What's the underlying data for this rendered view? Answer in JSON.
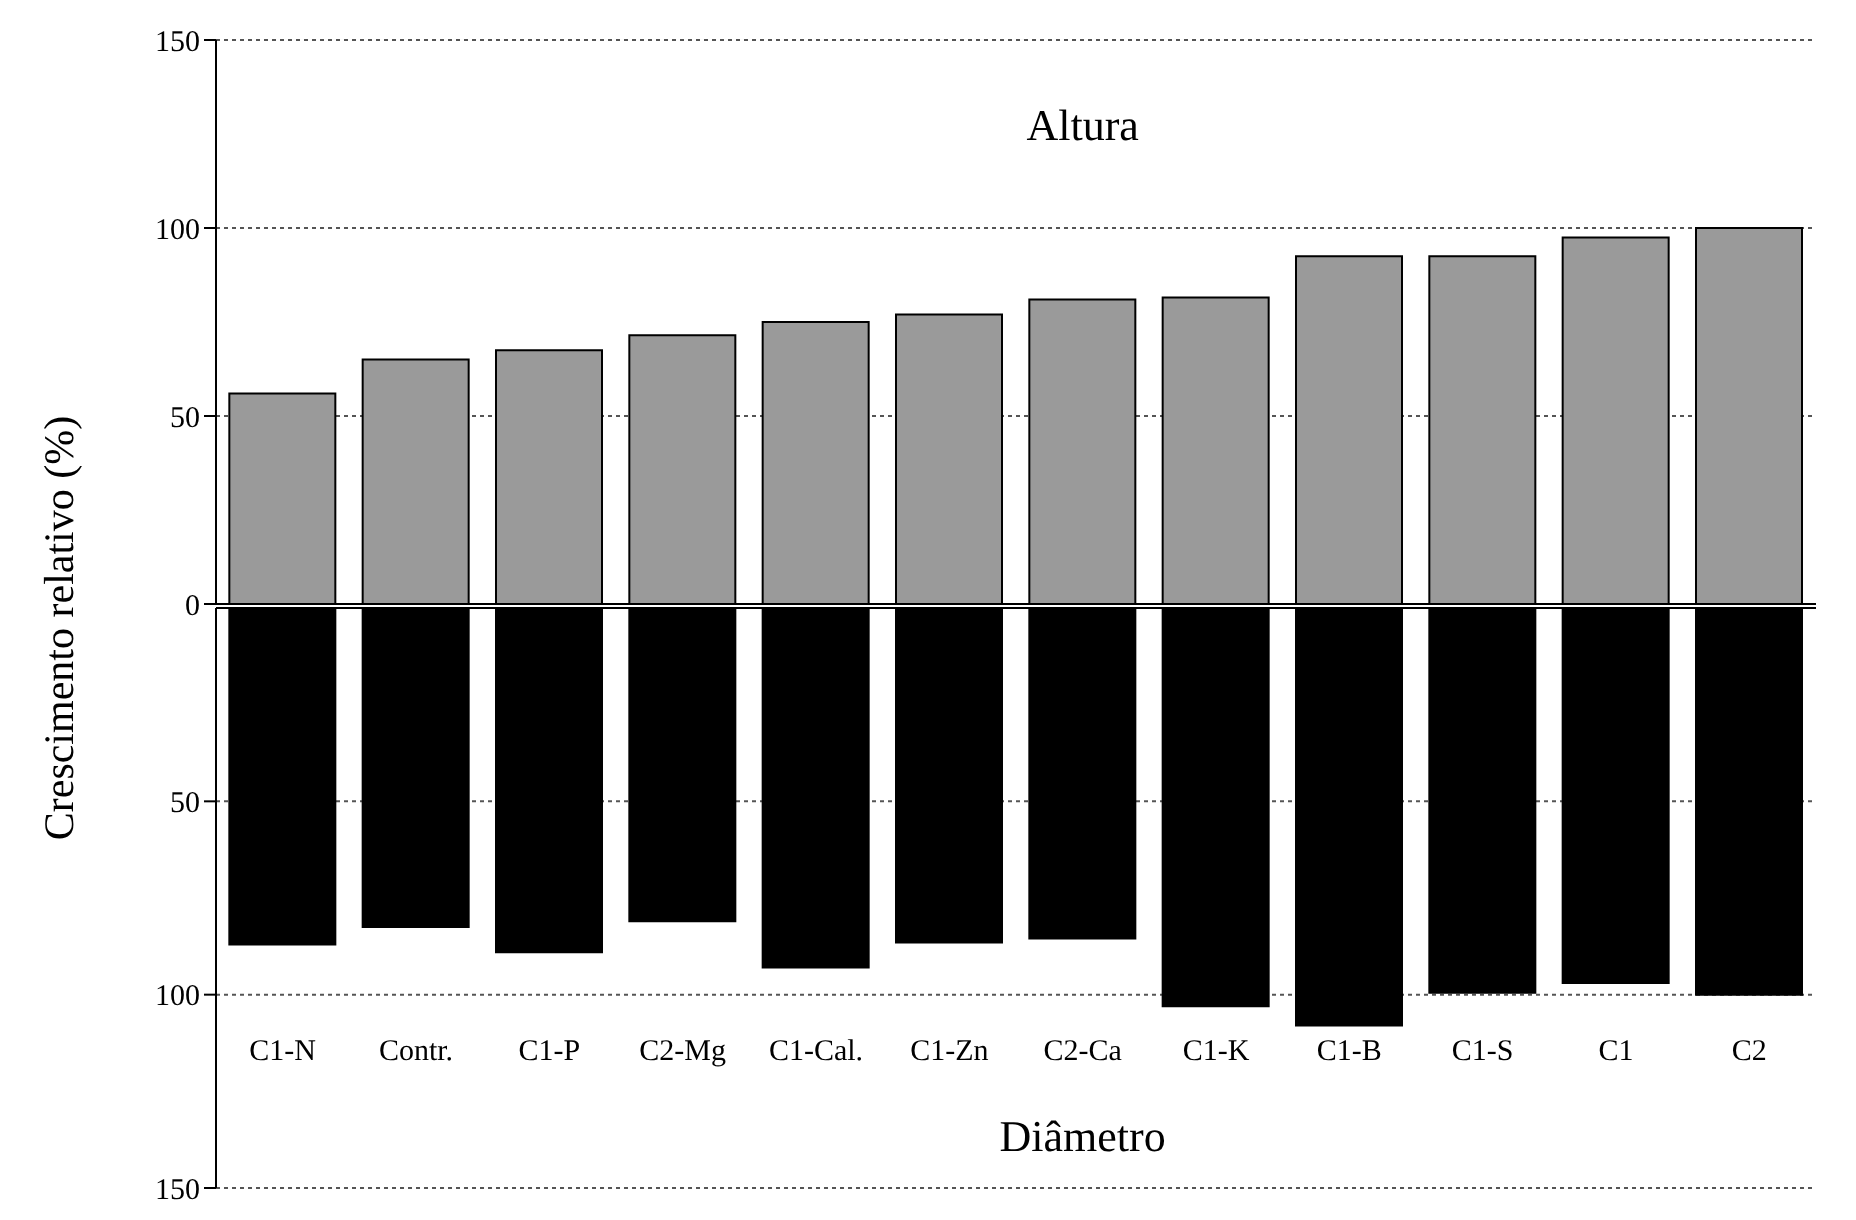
{
  "chart_data": [
    {
      "type": "bar",
      "ylabel": "Crescimento relativo (%)",
      "categories": [
        null,
        null,
        null,
        null,
        null,
        null,
        null,
        null,
        null,
        null,
        null,
        null
      ],
      "series": [
        {
          "name": "Altura",
          "color": "#9a9a9a",
          "values": [
            56,
            65,
            67.5,
            71.5,
            75,
            77,
            81,
            81.5,
            92.5,
            92.5,
            97.5,
            100
          ]
        }
      ],
      "ylim": [
        0,
        150
      ],
      "yticks": [
        0,
        50,
        100,
        150
      ],
      "grid": "y",
      "tick_labels": "y"
    },
    {
      "type": "bar",
      "categories": [
        "C1-N",
        "Contr.",
        "C1-P",
        "C2-Mg",
        "C1-Cal.",
        "C1-Zn",
        "C2-Ca",
        "C1-K",
        "C1-B",
        "C1-S",
        "C1",
        "C2"
      ],
      "series": [
        {
          "name": "Diâmetro",
          "color": "#000000",
          "values": [
            87,
            82.5,
            89,
            81,
            93,
            86.5,
            85.5,
            103,
            108,
            99.5,
            97,
            100
          ]
        }
      ],
      "ylim": [
        150,
        0
      ],
      "yticks": [
        50,
        100,
        150
      ],
      "grid": "y"
    }
  ]
}
